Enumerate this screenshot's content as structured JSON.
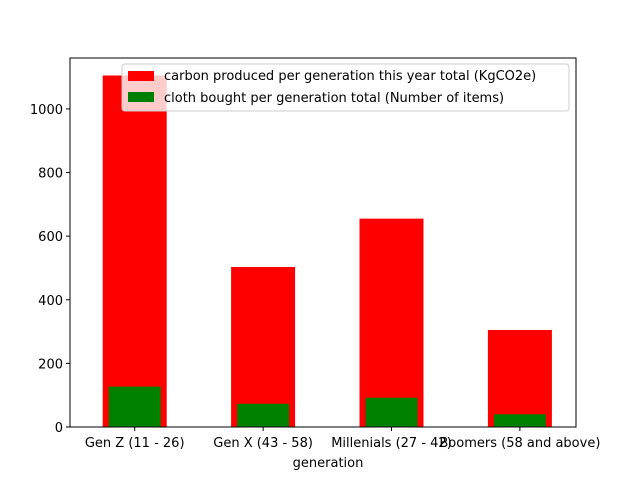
{
  "chart_data": {
    "type": "bar",
    "xlabel": "generation",
    "ylabel": "",
    "categories": [
      "Gen Z (11 - 26)",
      "Gen X (43 - 58)",
      "Millenials (27 - 42)",
      "Boomers (58 and above)"
    ],
    "ylim": [
      0,
      1160
    ],
    "yticks": [
      0,
      200,
      400,
      600,
      800,
      1000
    ],
    "grid": false,
    "legend_position": "top-right",
    "series": [
      {
        "name": "carbon produced per generation this year total (KgCO2e)",
        "color": "#ff0000",
        "values": [
          1105,
          503,
          655,
          305
        ]
      },
      {
        "name": "cloth bought per generation total (Number of items)",
        "color": "#008000",
        "values": [
          127,
          73,
          92,
          40
        ]
      }
    ]
  }
}
